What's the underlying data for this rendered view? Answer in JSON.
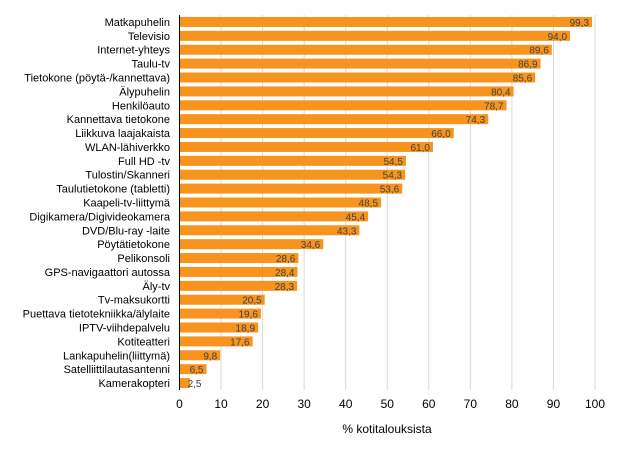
{
  "chart_data": {
    "type": "bar",
    "orientation": "horizontal",
    "title": "",
    "xlabel": "% kotitalouksista",
    "ylabel": "",
    "xlim": [
      0,
      100
    ],
    "xticks": [
      0,
      10,
      20,
      30,
      40,
      50,
      60,
      70,
      80,
      90,
      100
    ],
    "grid": "vertical",
    "bar_color": "#F7941D",
    "categories": [
      "Matkapuhelin",
      "Televisio",
      "Internet-yhteys",
      "Taulu-tv",
      "Tietokone (pöytä-/kannettava)",
      "Älypuhelin",
      "Henkilöauto",
      "Kannettava tietokone",
      "Liikkuva laajakaista",
      "WLAN-lähiverkko",
      "Full HD -tv",
      "Tulostin/Skanneri",
      "Taulutietokone (tabletti)",
      "Kaapeli-tv-liittymä",
      "Digikamera/Digivideokamera",
      "DVD/Blu-ray -laite",
      "Pöytätietokone",
      "Pelikonsoli",
      "GPS-navigaattori autossa",
      "Äly-tv",
      "Tv-maksukortti",
      "Puettava tietotekniikka/älylaite",
      "IPTV-viihdepalvelu",
      "Kotiteatteri",
      "Lankapuhelin(liittymä)",
      "Satelliittilautasantenni",
      "Kamerakopteri"
    ],
    "values": [
      99.3,
      94.0,
      89.6,
      86.9,
      85.6,
      80.4,
      78.7,
      74.3,
      66.0,
      61.0,
      54.5,
      54.3,
      53.6,
      48.5,
      45.4,
      43.3,
      34.6,
      28.6,
      28.4,
      28.3,
      20.5,
      19.6,
      18.9,
      17.6,
      9.8,
      6.5,
      2.5
    ],
    "data_labels": [
      "99,3",
      "94,0",
      "89,6",
      "86,9",
      "85,6",
      "80,4",
      "78,7",
      "74,3",
      "66,0",
      "61,0",
      "54,5",
      "54,3",
      "53,6",
      "48,5",
      "45,4",
      "43,3",
      "34,6",
      "28,6",
      "28,4",
      "28,3",
      "20,5",
      "19,6",
      "18,9",
      "17,6",
      "9,8",
      "6,5",
      "2,5"
    ]
  }
}
